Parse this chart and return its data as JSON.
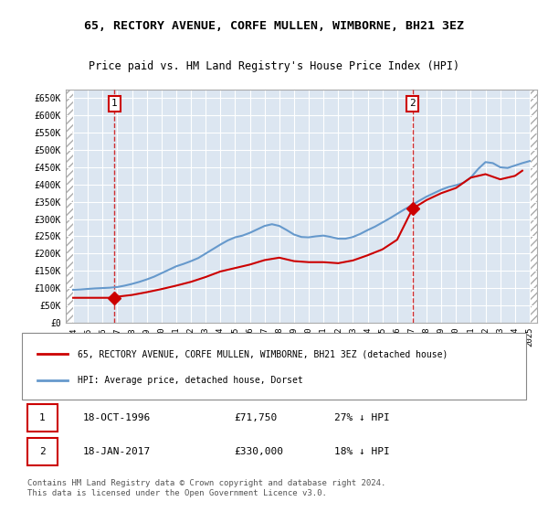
{
  "title": "65, RECTORY AVENUE, CORFE MULLEN, WIMBORNE, BH21 3EZ",
  "subtitle": "Price paid vs. HM Land Registry's House Price Index (HPI)",
  "legend_line1": "65, RECTORY AVENUE, CORFE MULLEN, WIMBORNE, BH21 3EZ (detached house)",
  "legend_line2": "HPI: Average price, detached house, Dorset",
  "footnote": "Contains HM Land Registry data © Crown copyright and database right 2024.\nThis data is licensed under the Open Government Licence v3.0.",
  "transaction1_label": "1",
  "transaction1_date": "18-OCT-1996",
  "transaction1_price": "£71,750",
  "transaction1_hpi": "27% ↓ HPI",
  "transaction1_x": 1996.8,
  "transaction1_y": 71750,
  "transaction2_label": "2",
  "transaction2_date": "18-JAN-2017",
  "transaction2_price": "£330,000",
  "transaction2_hpi": "18% ↓ HPI",
  "transaction2_x": 2017.05,
  "transaction2_y": 330000,
  "price_color": "#cc0000",
  "hpi_color": "#6699cc",
  "vline_color": "#cc0000",
  "bg_color": "#dce6f1",
  "hatch_color": "#c0c8d8",
  "ylim_min": 0,
  "ylim_max": 675000,
  "xlim_min": 1993.5,
  "xlim_max": 2025.5,
  "yticks": [
    0,
    50000,
    100000,
    150000,
    200000,
    250000,
    300000,
    350000,
    400000,
    450000,
    500000,
    550000,
    600000,
    650000
  ],
  "ytick_labels": [
    "£0",
    "£50K",
    "£100K",
    "£150K",
    "£200K",
    "£250K",
    "£300K",
    "£350K",
    "£400K",
    "£450K",
    "£500K",
    "£550K",
    "£600K",
    "£650K"
  ],
  "xticks": [
    1994,
    1995,
    1996,
    1997,
    1998,
    1999,
    2000,
    2001,
    2002,
    2003,
    2004,
    2005,
    2006,
    2007,
    2008,
    2009,
    2010,
    2011,
    2012,
    2013,
    2014,
    2015,
    2016,
    2017,
    2018,
    2019,
    2020,
    2021,
    2022,
    2023,
    2024,
    2025
  ],
  "hpi_x": [
    1994,
    1994.5,
    1995,
    1995.5,
    1996,
    1996.5,
    1997,
    1997.5,
    1998,
    1998.5,
    1999,
    1999.5,
    2000,
    2000.5,
    2001,
    2001.5,
    2002,
    2002.5,
    2003,
    2003.5,
    2004,
    2004.5,
    2005,
    2005.5,
    2006,
    2006.5,
    2007,
    2007.5,
    2008,
    2008.5,
    2009,
    2009.5,
    2010,
    2010.5,
    2011,
    2011.5,
    2012,
    2012.5,
    2013,
    2013.5,
    2014,
    2014.5,
    2015,
    2015.5,
    2016,
    2016.5,
    2017,
    2017.5,
    2018,
    2018.5,
    2019,
    2019.5,
    2020,
    2020.5,
    2021,
    2021.5,
    2022,
    2022.5,
    2023,
    2023.5,
    2024,
    2024.5,
    2025
  ],
  "hpi_y": [
    95000,
    96000,
    97500,
    99000,
    100000,
    101000,
    103000,
    107000,
    112000,
    118000,
    125000,
    133000,
    143000,
    153000,
    163000,
    170000,
    178000,
    187000,
    200000,
    213000,
    226000,
    238000,
    247000,
    252000,
    260000,
    270000,
    280000,
    285000,
    280000,
    268000,
    255000,
    248000,
    247000,
    250000,
    252000,
    248000,
    243000,
    243000,
    248000,
    257000,
    268000,
    278000,
    290000,
    302000,
    315000,
    328000,
    340000,
    353000,
    365000,
    375000,
    385000,
    393000,
    398000,
    405000,
    420000,
    445000,
    465000,
    462000,
    450000,
    448000,
    455000,
    462000,
    468000
  ],
  "price_x": [
    1994.0,
    1996.8,
    1997.0,
    1998.0,
    1999.0,
    2000.0,
    2001.0,
    2002.0,
    2003.0,
    2004.0,
    2005.0,
    2006.0,
    2007.0,
    2008.0,
    2009.0,
    2010.0,
    2011.0,
    2012.0,
    2013.0,
    2014.0,
    2015.0,
    2016.0,
    2017.05,
    2018.0,
    2019.0,
    2020.0,
    2021.0,
    2022.0,
    2023.0,
    2024.0,
    2024.5
  ],
  "price_y": [
    71750,
    71750,
    75000,
    80000,
    88000,
    97000,
    107000,
    118000,
    132000,
    148000,
    158000,
    168000,
    181000,
    188000,
    178000,
    175000,
    175000,
    172000,
    180000,
    195000,
    212000,
    240000,
    330000,
    355000,
    375000,
    390000,
    420000,
    430000,
    415000,
    425000,
    440000
  ]
}
